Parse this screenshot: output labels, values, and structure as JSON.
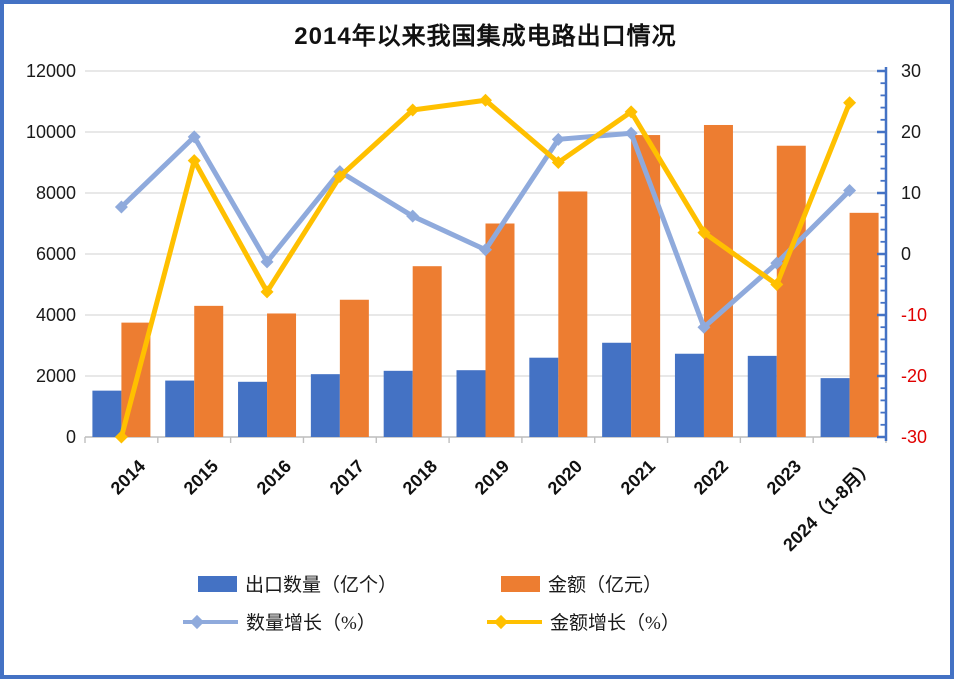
{
  "chart_data": {
    "type": "combo",
    "title": "2014年以来我国集成电路出口情况",
    "categories": [
      "2014",
      "2015",
      "2016",
      "2017",
      "2018",
      "2019",
      "2020",
      "2021",
      "2022",
      "2023",
      "2024（1-8月）"
    ],
    "series": [
      {
        "name": "出口数量（亿个）",
        "type": "bar",
        "axis": "left",
        "color": "#4472C4",
        "values": [
          1520,
          1850,
          1810,
          2060,
          2170,
          2190,
          2600,
          3090,
          2730,
          2660,
          1930
        ]
      },
      {
        "name": "金额（亿元）",
        "type": "bar",
        "axis": "left",
        "color": "#ED7D31",
        "values": [
          3750,
          4300,
          4050,
          4500,
          5600,
          7000,
          8050,
          9900,
          10230,
          9550,
          7350
        ]
      },
      {
        "name": "数量增长（%）",
        "type": "line",
        "axis": "right",
        "color": "#8FAADC",
        "values": [
          7.7,
          19.2,
          -1.3,
          13.5,
          6.2,
          0.7,
          18.8,
          19.8,
          -12.0,
          -1.5,
          10.4
        ]
      },
      {
        "name": "金额增长（%）",
        "type": "line",
        "axis": "right",
        "color": "#FFC000",
        "values": [
          -30.0,
          15.3,
          -6.2,
          12.7,
          23.6,
          25.2,
          15.0,
          23.3,
          3.5,
          -5.0,
          24.8
        ]
      }
    ],
    "left_axis": {
      "min": 0,
      "max": 12000,
      "ticks": [
        "12000",
        "10000",
        "8000",
        "6000",
        "4000",
        "2000",
        "0"
      ]
    },
    "right_axis": {
      "min": -30,
      "max": 30,
      "ticks": [
        "30",
        "20",
        "10",
        "0",
        "-10",
        "-20",
        "-30"
      ]
    },
    "gridlines": true,
    "legend_position": "bottom"
  },
  "colors": {
    "border": "#4472C4",
    "gridline": "#D9D9D9",
    "x_axis_line": "#BFBFBF",
    "right_axis_line": "#4472C4",
    "negative_tick_text": "#E00000",
    "tick_text": "#1a1a1a"
  }
}
